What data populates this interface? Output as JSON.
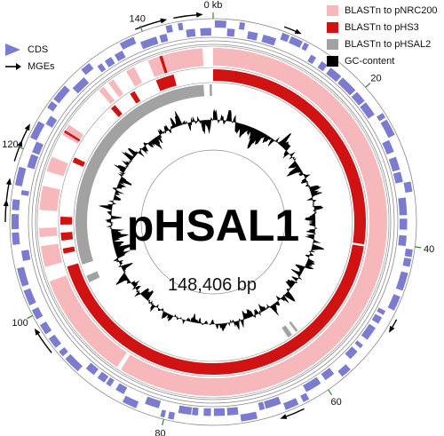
{
  "plasmid": {
    "name": "pHSAL1",
    "length_label": "148,406 bp"
  },
  "ticks": [
    {
      "label": "0 kb",
      "kb": 0
    },
    {
      "label": "20",
      "kb": 20
    },
    {
      "label": "40",
      "kb": 40
    },
    {
      "label": "60",
      "kb": 60
    },
    {
      "label": "80",
      "kb": 80
    },
    {
      "label": "100",
      "kb": 100
    },
    {
      "label": "120",
      "kb": 120
    },
    {
      "label": "140",
      "kb": 140
    }
  ],
  "legend_left": [
    {
      "label": "CDS",
      "color": "#7b7bd0",
      "icon": "cds-arrow-icon"
    },
    {
      "label": "MGEs",
      "color": "#000000",
      "icon": "mge-arrow-icon"
    }
  ],
  "legend_right": [
    {
      "label": "BLASTn to  pNRC200",
      "color": "#f7b8bb"
    },
    {
      "label": "BLASTn to pHS3",
      "color": "#d01212"
    },
    {
      "label": "BLASTn to pHSAL2",
      "color": "#a2a2a2"
    },
    {
      "label": "GC-content",
      "color": "#000000"
    }
  ],
  "colors": {
    "cds": "#7b7bd0",
    "pnrc200": "#f7b8bb",
    "phs3": "#d01212",
    "phsal2": "#a2a2a2",
    "gc": "#000000",
    "ring_line": "#8c8c8c"
  }
}
